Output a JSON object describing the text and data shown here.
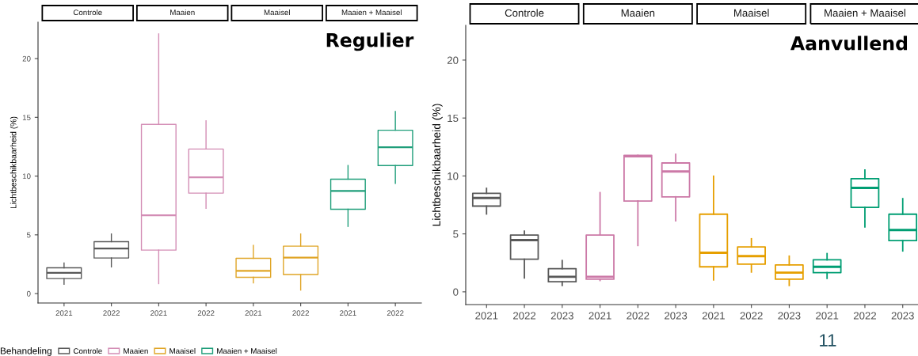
{
  "chart_data": [
    {
      "type": "box",
      "ylabel": "Lichtbeschikbaarheid (%)",
      "categories": [
        "2021",
        "2022",
        "2021",
        "2022",
        "2021",
        "2022",
        "2021",
        "2022"
      ],
      "ylim": [
        -0.8,
        23.1
      ],
      "yticks": [
        0,
        5,
        10,
        15,
        20
      ],
      "legend": "bottom",
      "legend_title": "Behandeling",
      "grid": false,
      "annotations": [
        "Controle",
        "Maaien",
        "Maaisel",
        "Maaien + Maaisel",
        "Regulier"
      ],
      "series": [
        {
          "name": "Controle",
          "color": "#595959",
          "boxes": [
            {
              "low": 0.8,
              "q1": 1.28,
              "median": 1.77,
              "q3": 2.2,
              "high": 2.6
            },
            {
              "low": 2.27,
              "q1": 3.03,
              "median": 3.84,
              "q3": 4.42,
              "high": 5.07
            },
            null,
            null,
            null,
            null,
            null,
            null
          ]
        },
        {
          "name": "Maaien",
          "color": "#d38db5",
          "boxes": [
            null,
            null,
            {
              "low": 0.85,
              "q1": 3.7,
              "median": 6.67,
              "q3": 14.4,
              "high": 22.1
            },
            {
              "low": 7.25,
              "q1": 8.55,
              "median": 9.9,
              "q3": 12.3,
              "high": 14.7
            },
            null,
            null,
            null,
            null
          ]
        },
        {
          "name": "Maaisel",
          "color": "#e0a526",
          "boxes": [
            null,
            null,
            null,
            null,
            {
              "low": 0.92,
              "q1": 1.39,
              "median": 1.93,
              "q3": 3.0,
              "high": 4.1
            },
            {
              "low": 0.3,
              "q1": 1.62,
              "median": 3.07,
              "q3": 4.04,
              "high": 5.07
            },
            null,
            null
          ]
        },
        {
          "name": "Maaien + Maaisel",
          "color": "#1f9e7a",
          "boxes": [
            null,
            null,
            null,
            null,
            null,
            null,
            {
              "low": 5.72,
              "q1": 7.18,
              "median": 8.73,
              "q3": 9.74,
              "high": 10.9
            },
            {
              "low": 9.38,
              "q1": 10.9,
              "median": 12.46,
              "q3": 13.9,
              "high": 15.5
            }
          ]
        }
      ]
    },
    {
      "type": "box",
      "ylabel": "Lichtbeschikbaarheid (%)",
      "categories": [
        "2021",
        "2022",
        "2023",
        "2021",
        "2022",
        "2023",
        "2021",
        "2022",
        "2023",
        "2021",
        "2022",
        "2023"
      ],
      "ylim": [
        -1.1,
        23.0
      ],
      "yticks": [
        0,
        5,
        10,
        15,
        20
      ],
      "grid": false,
      "annotations": [
        "Controle",
        "Maaien",
        "Maaisel",
        "Maaien + Maaisel",
        "Aanvullend",
        "11"
      ],
      "series": [
        {
          "color": "#595959",
          "boxes": [
            {
              "low": 6.72,
              "q1": 7.4,
              "median": 8.1,
              "q3": 8.5,
              "high": 8.93
            },
            {
              "low": 1.2,
              "q1": 2.82,
              "median": 4.46,
              "q3": 4.9,
              "high": 5.24
            },
            {
              "low": 0.55,
              "q1": 0.87,
              "median": 1.3,
              "q3": 2.0,
              "high": 2.7
            },
            null,
            null,
            null,
            null,
            null,
            null,
            null,
            null,
            null
          ]
        },
        {
          "color": "#cc79a7",
          "boxes": [
            null,
            null,
            null,
            {
              "low": 0.98,
              "q1": 1.09,
              "median": 1.3,
              "q3": 4.9,
              "high": 8.56
            },
            {
              "low": 4.0,
              "q1": 7.84,
              "median": 11.69,
              "q3": 11.78,
              "high": 11.78
            },
            {
              "low": 6.13,
              "q1": 8.2,
              "median": 10.39,
              "q3": 11.12,
              "high": 11.87
            },
            null,
            null,
            null,
            null,
            null,
            null
          ]
        },
        {
          "color": "#e69f00",
          "boxes": [
            null,
            null,
            null,
            null,
            null,
            null,
            {
              "low": 1.03,
              "q1": 2.16,
              "median": 3.37,
              "q3": 6.7,
              "high": 9.98
            },
            {
              "low": 1.71,
              "q1": 2.39,
              "median": 3.08,
              "q3": 3.87,
              "high": 4.58
            },
            {
              "low": 0.55,
              "q1": 1.09,
              "median": 1.66,
              "q3": 2.32,
              "high": 3.08
            },
            null,
            null,
            null
          ]
        },
        {
          "color": "#009e73",
          "boxes": [
            null,
            null,
            null,
            null,
            null,
            null,
            null,
            null,
            null,
            {
              "low": 1.16,
              "q1": 1.66,
              "median": 2.16,
              "q3": 2.76,
              "high": 3.3
            },
            {
              "low": 5.6,
              "q1": 7.29,
              "median": 8.97,
              "q3": 9.77,
              "high": 10.52
            },
            {
              "low": 3.53,
              "q1": 4.42,
              "median": 5.33,
              "q3": 6.7,
              "high": 8.04
            }
          ]
        }
      ]
    }
  ]
}
